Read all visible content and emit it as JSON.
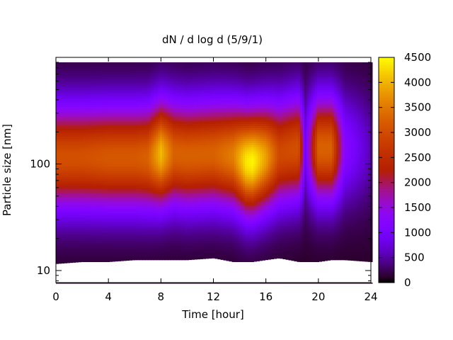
{
  "chart_data": {
    "type": "heatmap",
    "title": "dN / d log d (5/9/1)",
    "xlabel": "Time [hour]",
    "ylabel": "Particle size [nm]",
    "x_range": [
      0,
      24
    ],
    "x_ticks": [
      0,
      4,
      8,
      12,
      16,
      20,
      24
    ],
    "y_scale": "log",
    "y_range": [
      7.7,
      900
    ],
    "y_ticks": [
      10,
      100
    ],
    "colorbar": {
      "range": [
        0,
        4500
      ],
      "ticks": [
        0,
        500,
        1000,
        1500,
        2000,
        2500,
        3000,
        3500,
        4000,
        4500
      ],
      "colormap": "gnuplot (black-purple-red-orange-yellow)"
    },
    "time_hours": [
      0,
      2,
      4,
      6,
      7,
      8,
      9,
      10,
      12,
      13.5,
      14.5,
      15,
      16,
      17,
      18.5,
      19,
      20,
      21,
      22,
      24
    ],
    "mode_diameter_nm": [
      115,
      115,
      115,
      115,
      115,
      125,
      125,
      120,
      125,
      120,
      105,
      105,
      115,
      125,
      140,
      140,
      140,
      140,
      140,
      140
    ],
    "peak_concentration": [
      2800,
      2800,
      2900,
      2900,
      3000,
      3800,
      3000,
      3000,
      3000,
      3300,
      4100,
      4200,
      3600,
      2700,
      2800,
      700,
      3000,
      3000,
      1000,
      300
    ],
    "lower_detection_limit_nm": [
      11.5,
      12,
      12,
      12.5,
      12.5,
      12.5,
      12.5,
      12.5,
      13,
      12,
      12,
      12,
      12.5,
      13,
      12,
      12,
      12,
      12.5,
      12.5,
      12
    ]
  }
}
